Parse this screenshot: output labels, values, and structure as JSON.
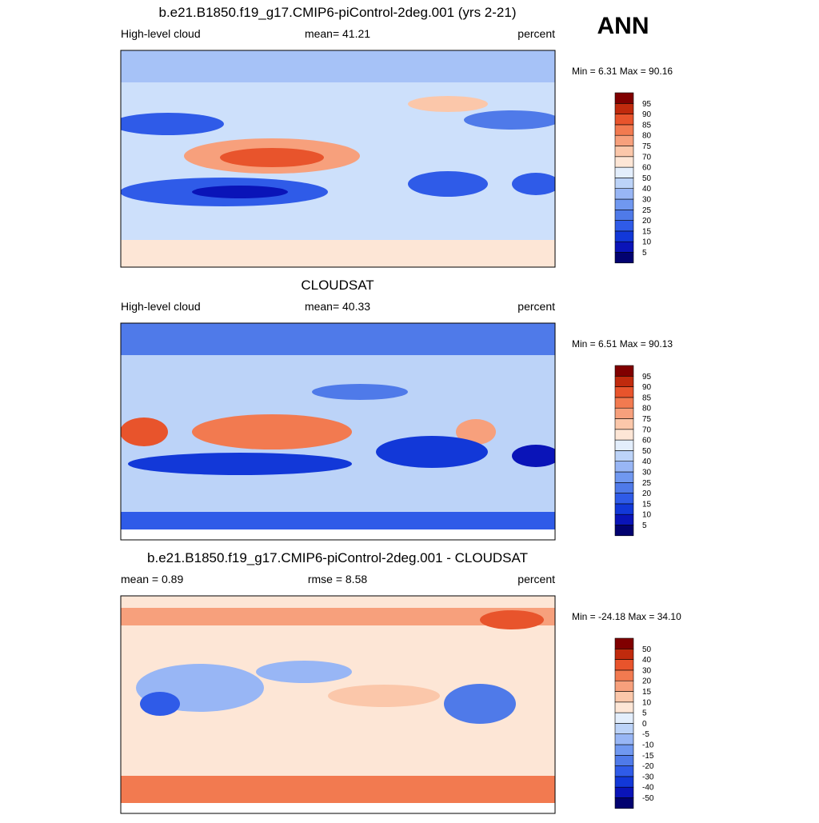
{
  "figure": {
    "season": "ANN",
    "colors": [
      "#020270",
      "#0a14b8",
      "#1238d8",
      "#2f5be8",
      "#4f7ae9",
      "#7098f0",
      "#98b6f5",
      "#bcd3f8",
      "#e3eefc",
      "#fde6d6",
      "#fbc7aa",
      "#f7a07c",
      "#f27a50",
      "#e8542c",
      "#c02a0d",
      "#800000"
    ],
    "panels": [
      {
        "title": "b.e21.B1850.f19_g17.CMIP6-piControl-2deg.001 (yrs 2-21)",
        "left": "High-level cloud",
        "center": "mean=  41.21",
        "right": "percent",
        "minmax": "Min =   6.31 Max =  90.16",
        "levels": [
          95,
          90,
          85,
          80,
          75,
          70,
          60,
          50,
          40,
          30,
          25,
          20,
          15,
          10,
          5
        ]
      },
      {
        "title": "CLOUDSAT",
        "left": "High-level cloud",
        "center": "mean=  40.33",
        "right": "percent",
        "minmax": "Min =   6.51 Max =  90.13",
        "levels": [
          95,
          90,
          85,
          80,
          75,
          70,
          60,
          50,
          40,
          30,
          25,
          20,
          15,
          10,
          5
        ]
      },
      {
        "title": "b.e21.B1850.f19_g17.CMIP6-piControl-2deg.001 - CLOUDSAT",
        "left": "mean =   0.89",
        "center": "rmse =   8.58",
        "right": "percent",
        "minmax": "Min = -24.18 Max =  34.10",
        "levels": [
          50,
          40,
          30,
          20,
          15,
          10,
          5,
          0,
          -5,
          -10,
          -15,
          -20,
          -30,
          -40,
          -50
        ]
      }
    ]
  }
}
